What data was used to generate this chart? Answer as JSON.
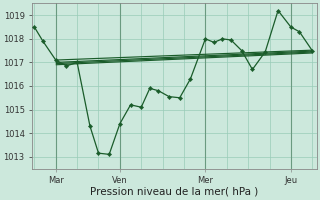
{
  "bg_color": "#cce8dc",
  "grid_color": "#99ccb8",
  "line_color": "#1a5c2a",
  "xlabel": "Pression niveau de la mer( hPa )",
  "x_tick_labels": [
    "Mar",
    "Ven",
    "Mer",
    "Jeu"
  ],
  "x_tick_positions": [
    1,
    4,
    8,
    12
  ],
  "ylim": [
    1012.5,
    1019.5
  ],
  "yticks": [
    1013,
    1014,
    1015,
    1016,
    1017,
    1018,
    1019
  ],
  "xlim": [
    -0.1,
    13.2
  ],
  "main_series_x": [
    0,
    0.4,
    1,
    1.5,
    2,
    2.6,
    3,
    3.5,
    4,
    4.5,
    5,
    5.4,
    5.8,
    6.3,
    6.8,
    7.3,
    8,
    8.4,
    8.8,
    9.2,
    9.7,
    10.2,
    10.8,
    11.4,
    12,
    12.4,
    13
  ],
  "main_series_y": [
    1018.5,
    1017.9,
    1017.1,
    1016.85,
    1017.0,
    1014.3,
    1013.15,
    1013.1,
    1014.4,
    1015.2,
    1015.1,
    1015.9,
    1015.8,
    1015.55,
    1015.5,
    1016.3,
    1018.0,
    1017.85,
    1018.0,
    1017.95,
    1017.5,
    1016.7,
    1017.45,
    1019.2,
    1018.5,
    1018.3,
    1017.5
  ],
  "trend_lines": [
    {
      "x": [
        1,
        13
      ],
      "y": [
        1017.1,
        1017.52
      ]
    },
    {
      "x": [
        1,
        13
      ],
      "y": [
        1017.0,
        1017.48
      ]
    },
    {
      "x": [
        1,
        13
      ],
      "y": [
        1016.95,
        1017.44
      ]
    },
    {
      "x": [
        1,
        13
      ],
      "y": [
        1016.9,
        1017.4
      ]
    }
  ],
  "vline_positions": [
    1,
    4,
    8,
    12
  ],
  "tick_fontsize": 6.0,
  "xlabel_fontsize": 7.5
}
